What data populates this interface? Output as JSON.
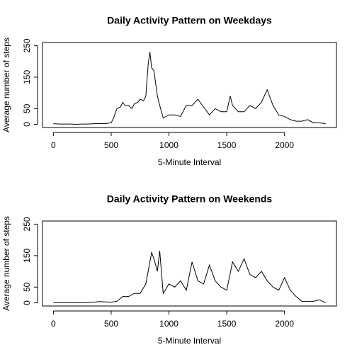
{
  "chart_data": [
    {
      "type": "line",
      "title": "Daily Activity Pattern on Weekdays",
      "xlabel": "5-Minute Interval",
      "ylabel": "Average number of steps",
      "x": [
        0,
        50,
        100,
        150,
        200,
        250,
        300,
        350,
        400,
        450,
        500,
        520,
        550,
        580,
        600,
        620,
        650,
        680,
        700,
        730,
        750,
        780,
        800,
        820,
        835,
        850,
        870,
        900,
        920,
        950,
        1000,
        1050,
        1100,
        1150,
        1200,
        1250,
        1300,
        1350,
        1400,
        1450,
        1500,
        1530,
        1550,
        1600,
        1650,
        1700,
        1750,
        1800,
        1850,
        1900,
        1950,
        2000,
        2050,
        2100,
        2150,
        2200,
        2250,
        2300,
        2355
      ],
      "series": [
        {
          "name": "weekday",
          "color": "#000000",
          "values": [
            2,
            1,
            1,
            1,
            0,
            1,
            1,
            2,
            3,
            2,
            5,
            20,
            50,
            55,
            70,
            60,
            60,
            50,
            65,
            70,
            80,
            75,
            90,
            190,
            230,
            180,
            170,
            90,
            60,
            20,
            30,
            30,
            25,
            60,
            60,
            80,
            55,
            30,
            50,
            40,
            40,
            90,
            60,
            40,
            40,
            60,
            50,
            70,
            110,
            60,
            30,
            25,
            15,
            10,
            10,
            15,
            5,
            5,
            2
          ]
        }
      ],
      "xlim": [
        -94.2,
        2449.2
      ],
      "ylim": [
        -10,
        260
      ],
      "xticks": [
        0,
        500,
        1000,
        1500,
        2000
      ],
      "yticks": [
        0,
        50,
        150,
        250
      ]
    },
    {
      "type": "line",
      "title": "Daily Activity Pattern on Weekends",
      "xlabel": "5-Minute Interval",
      "ylabel": "Average number of steps",
      "x": [
        0,
        50,
        100,
        150,
        200,
        250,
        300,
        350,
        400,
        450,
        500,
        550,
        600,
        650,
        700,
        750,
        800,
        830,
        850,
        870,
        900,
        920,
        950,
        1000,
        1050,
        1100,
        1150,
        1200,
        1250,
        1300,
        1350,
        1400,
        1450,
        1500,
        1550,
        1600,
        1650,
        1700,
        1750,
        1800,
        1850,
        1900,
        1950,
        2000,
        2050,
        2100,
        2150,
        2200,
        2250,
        2300,
        2355
      ],
      "series": [
        {
          "name": "weekend",
          "color": "#000000",
          "values": [
            0,
            1,
            0,
            1,
            0,
            0,
            1,
            2,
            4,
            3,
            2,
            5,
            20,
            20,
            30,
            30,
            60,
            120,
            160,
            140,
            100,
            165,
            30,
            60,
            50,
            70,
            40,
            130,
            70,
            60,
            120,
            70,
            50,
            40,
            130,
            100,
            140,
            90,
            80,
            100,
            70,
            50,
            40,
            80,
            40,
            20,
            5,
            5,
            5,
            10,
            0
          ]
        }
      ],
      "xlim": [
        -94.2,
        2449.2
      ],
      "ylim": [
        -10,
        260
      ],
      "xticks": [
        0,
        500,
        1000,
        1500,
        2000
      ],
      "yticks": [
        0,
        50,
        150,
        250
      ]
    }
  ]
}
